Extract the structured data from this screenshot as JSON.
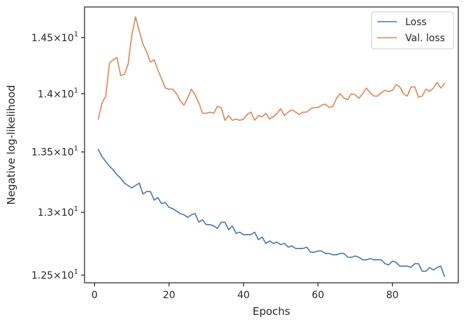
{
  "chart_data": {
    "type": "line",
    "xlabel": "Epochs",
    "ylabel": "Negative log-likelihood",
    "yscale": "log",
    "xlim": [
      -2.7,
      97.7
    ],
    "ylim": [
      12.44,
      14.78
    ],
    "grid": false,
    "legend_position": "top-right",
    "x_ticks": [
      {
        "value": 0,
        "label": "0"
      },
      {
        "value": 20,
        "label": "20"
      },
      {
        "value": 40,
        "label": "40"
      },
      {
        "value": 60,
        "label": "60"
      },
      {
        "value": 80,
        "label": "80"
      }
    ],
    "y_ticks": [
      {
        "value": 12.5,
        "mantissa": "1.25",
        "times": "×",
        "base": "10",
        "exp": "1"
      },
      {
        "value": 13.0,
        "mantissa": "1.3",
        "times": "×",
        "base": "10",
        "exp": "1"
      },
      {
        "value": 13.5,
        "mantissa": "1.35",
        "times": "×",
        "base": "10",
        "exp": "1"
      },
      {
        "value": 14.0,
        "mantissa": "1.4",
        "times": "×",
        "base": "10",
        "exp": "1"
      },
      {
        "value": 14.5,
        "mantissa": "1.45",
        "times": "×",
        "base": "10",
        "exp": "1"
      }
    ],
    "series": [
      {
        "name": "Loss",
        "color": "#4c72b0",
        "x": [
          1,
          2,
          3,
          4,
          5,
          6,
          7,
          8,
          9,
          10,
          11,
          12,
          13,
          14,
          15,
          16,
          17,
          18,
          19,
          20,
          21,
          22,
          23,
          24,
          25,
          26,
          27,
          28,
          29,
          30,
          31,
          32,
          33,
          34,
          35,
          36,
          37,
          38,
          39,
          40,
          41,
          42,
          43,
          44,
          45,
          46,
          47,
          48,
          49,
          50,
          51,
          52,
          53,
          54,
          55,
          56,
          57,
          58,
          59,
          60,
          61,
          62,
          63,
          64,
          65,
          66,
          67,
          68,
          69,
          70,
          71,
          72,
          73,
          74,
          75,
          76,
          77,
          78,
          79,
          80,
          81,
          82,
          83,
          84,
          85,
          86,
          87,
          88,
          89,
          90,
          91,
          92,
          93,
          94
        ],
        "values": [
          13.52,
          13.46,
          13.42,
          13.38,
          13.35,
          13.31,
          13.28,
          13.24,
          13.22,
          13.2,
          13.22,
          13.24,
          13.15,
          13.17,
          13.17,
          13.1,
          13.12,
          13.07,
          13.08,
          13.04,
          13.03,
          13.01,
          12.99,
          12.98,
          12.96,
          12.98,
          12.99,
          12.92,
          12.94,
          12.9,
          12.9,
          12.89,
          12.87,
          12.92,
          12.92,
          12.86,
          12.89,
          12.83,
          12.84,
          12.82,
          12.82,
          12.82,
          12.84,
          12.78,
          12.8,
          12.75,
          12.77,
          12.75,
          12.76,
          12.74,
          12.75,
          12.72,
          12.73,
          12.71,
          12.71,
          12.71,
          12.72,
          12.68,
          12.68,
          12.69,
          12.69,
          12.67,
          12.67,
          12.66,
          12.66,
          12.67,
          12.67,
          12.64,
          12.64,
          12.65,
          12.64,
          12.62,
          12.62,
          12.63,
          12.62,
          12.62,
          12.62,
          12.59,
          12.58,
          12.61,
          12.6,
          12.57,
          12.57,
          12.57,
          12.56,
          12.59,
          12.59,
          12.53,
          12.53,
          12.56,
          12.54,
          12.56,
          12.57,
          12.49
        ]
      },
      {
        "name": "Val. loss",
        "color": "#dd8452",
        "x": [
          1,
          2,
          3,
          4,
          5,
          6,
          7,
          8,
          9,
          10,
          11,
          12,
          13,
          14,
          15,
          16,
          17,
          18,
          19,
          20,
          21,
          22,
          23,
          24,
          25,
          26,
          27,
          28,
          29,
          30,
          31,
          32,
          33,
          34,
          35,
          36,
          37,
          38,
          39,
          40,
          41,
          42,
          43,
          44,
          45,
          46,
          47,
          48,
          49,
          50,
          51,
          52,
          53,
          54,
          55,
          56,
          57,
          58,
          59,
          60,
          61,
          62,
          63,
          64,
          65,
          66,
          67,
          68,
          69,
          70,
          71,
          72,
          73,
          74,
          75,
          76,
          77,
          78,
          79,
          80,
          81,
          82,
          83,
          84,
          85,
          86,
          87,
          88,
          89,
          90,
          91,
          92,
          93,
          94
        ],
        "values": [
          13.78,
          13.92,
          13.98,
          14.27,
          14.3,
          14.32,
          14.16,
          14.17,
          14.26,
          14.52,
          14.69,
          14.56,
          14.44,
          14.37,
          14.28,
          14.3,
          14.21,
          14.13,
          14.05,
          14.04,
          14.04,
          14.0,
          13.94,
          13.9,
          13.96,
          14.04,
          13.99,
          13.92,
          13.83,
          13.83,
          13.84,
          13.83,
          13.89,
          13.88,
          13.77,
          13.81,
          13.77,
          13.78,
          13.77,
          13.78,
          13.82,
          13.84,
          13.77,
          13.81,
          13.8,
          13.83,
          13.78,
          13.8,
          13.83,
          13.87,
          13.81,
          13.84,
          13.86,
          13.84,
          13.82,
          13.84,
          13.84,
          13.87,
          13.88,
          13.88,
          13.9,
          13.91,
          13.88,
          13.89,
          13.96,
          14.0,
          13.96,
          13.95,
          14.0,
          13.99,
          13.96,
          14.0,
          14.05,
          14.01,
          13.98,
          13.98,
          14.01,
          14.03,
          14.02,
          14.03,
          14.08,
          14.06,
          14.0,
          13.98,
          14.06,
          14.06,
          13.97,
          13.98,
          14.04,
          14.02,
          14.05,
          14.1,
          14.05,
          14.09
        ]
      }
    ]
  }
}
